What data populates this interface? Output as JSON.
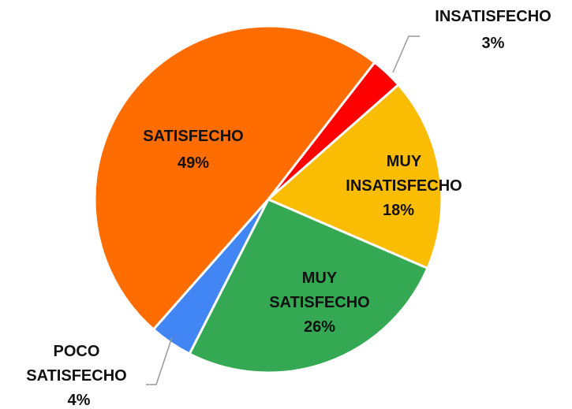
{
  "chart_data": {
    "type": "pie",
    "categories": [
      "INSATISFECHO",
      "MUY INSATISFECHO",
      "MUY SATISFECHO",
      "POCO SATISFECHO",
      "SATISFECHO"
    ],
    "values": [
      3,
      18,
      26,
      4,
      49
    ],
    "value_labels": [
      "3%",
      "18%",
      "26%",
      "4%",
      "49%"
    ],
    "colors": [
      "#ff0000",
      "#fbbc04",
      "#34a853",
      "#4285f4",
      "#ff6d01"
    ]
  }
}
